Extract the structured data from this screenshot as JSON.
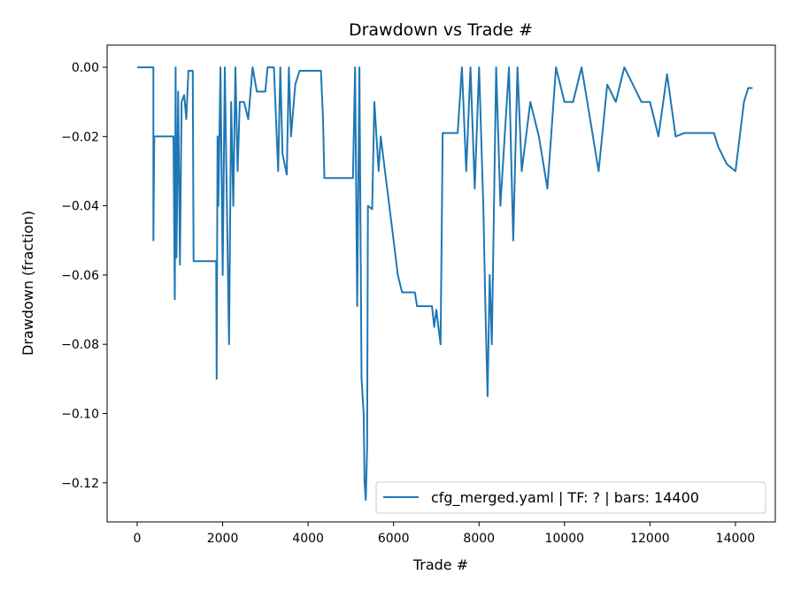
{
  "chart_data": {
    "type": "line",
    "title": "Drawdown vs Trade #",
    "xlabel": "Trade #",
    "ylabel": "Drawdown (fraction)",
    "xlim": [
      -704,
      14933
    ],
    "ylim": [
      -0.1313,
      0.0064
    ],
    "xticks": [
      0,
      2000,
      4000,
      6000,
      8000,
      10000,
      12000,
      14000
    ],
    "yticks": [
      0.0,
      -0.02,
      -0.04,
      -0.06,
      -0.08,
      -0.1,
      -0.12
    ],
    "xtick_labels": [
      "0",
      "2000",
      "4000",
      "6000",
      "8000",
      "10000",
      "12000",
      "14000"
    ],
    "ytick_labels": [
      "0.00",
      "−0.02",
      "−0.04",
      "−0.06",
      "−0.08",
      "−0.10",
      "−0.12"
    ],
    "grid": false,
    "legend_position": "lower-right",
    "color": "#1f77b4",
    "series": [
      {
        "name": "cfg_merged.yaml | TF: ? | bars: 14400",
        "x": [
          0,
          380,
          380,
          400,
          850,
          880,
          900,
          920,
          960,
          1000,
          1040,
          1100,
          1150,
          1200,
          1300,
          1320,
          1400,
          1850,
          1860,
          1880,
          1900,
          1950,
          2000,
          2050,
          2100,
          2150,
          2200,
          2250,
          2300,
          2350,
          2400,
          2500,
          2600,
          2700,
          2800,
          3000,
          3050,
          3200,
          3300,
          3350,
          3400,
          3500,
          3550,
          3600,
          3700,
          3800,
          4300,
          4350,
          4380,
          5050,
          5100,
          5150,
          5200,
          5250,
          5300,
          5320,
          5350,
          5380,
          5400,
          5500,
          5550,
          5600,
          5650,
          5700,
          5800,
          5900,
          6000,
          6100,
          6200,
          6500,
          6550,
          6900,
          6950,
          7000,
          7100,
          7150,
          7500,
          7600,
          7700,
          7800,
          7900,
          8000,
          8100,
          8150,
          8200,
          8250,
          8300,
          8400,
          8500,
          8600,
          8700,
          8800,
          8900,
          9000,
          9200,
          9400,
          9600,
          9800,
          10000,
          10200,
          10400,
          10600,
          10800,
          11000,
          11200,
          11400,
          11600,
          11800,
          12000,
          12200,
          12400,
          12600,
          12800,
          13500,
          13600,
          13800,
          14000,
          14200,
          14300,
          14400
        ],
        "y": [
          0,
          0,
          -0.05,
          -0.02,
          -0.02,
          -0.067,
          0,
          -0.055,
          -0.007,
          -0.057,
          -0.01,
          -0.008,
          -0.015,
          -0.001,
          -0.001,
          -0.056,
          -0.056,
          -0.056,
          -0.09,
          -0.02,
          -0.04,
          0,
          -0.06,
          0,
          -0.04,
          -0.08,
          -0.01,
          -0.04,
          0,
          -0.03,
          -0.01,
          -0.01,
          -0.015,
          0,
          -0.007,
          -0.007,
          0,
          0,
          -0.03,
          0,
          -0.025,
          -0.031,
          0,
          -0.02,
          -0.005,
          -0.001,
          -0.001,
          -0.015,
          -0.032,
          -0.032,
          0,
          -0.069,
          0,
          -0.09,
          -0.1,
          -0.12,
          -0.125,
          -0.11,
          -0.04,
          -0.041,
          -0.01,
          -0.02,
          -0.03,
          -0.02,
          -0.03,
          -0.04,
          -0.05,
          -0.06,
          -0.065,
          -0.065,
          -0.069,
          -0.069,
          -0.075,
          -0.07,
          -0.08,
          -0.019,
          -0.019,
          0,
          -0.03,
          0,
          -0.035,
          0,
          -0.04,
          -0.07,
          -0.095,
          -0.06,
          -0.08,
          0,
          -0.04,
          -0.02,
          0,
          -0.05,
          0,
          -0.03,
          -0.01,
          -0.02,
          -0.035,
          0,
          -0.01,
          -0.01,
          0,
          -0.015,
          -0.03,
          -0.005,
          -0.01,
          0,
          -0.005,
          -0.01,
          -0.01,
          -0.02,
          -0.002,
          -0.02,
          -0.019,
          -0.019,
          -0.023,
          -0.028,
          -0.03,
          -0.01,
          -0.006,
          -0.006
        ]
      }
    ]
  }
}
